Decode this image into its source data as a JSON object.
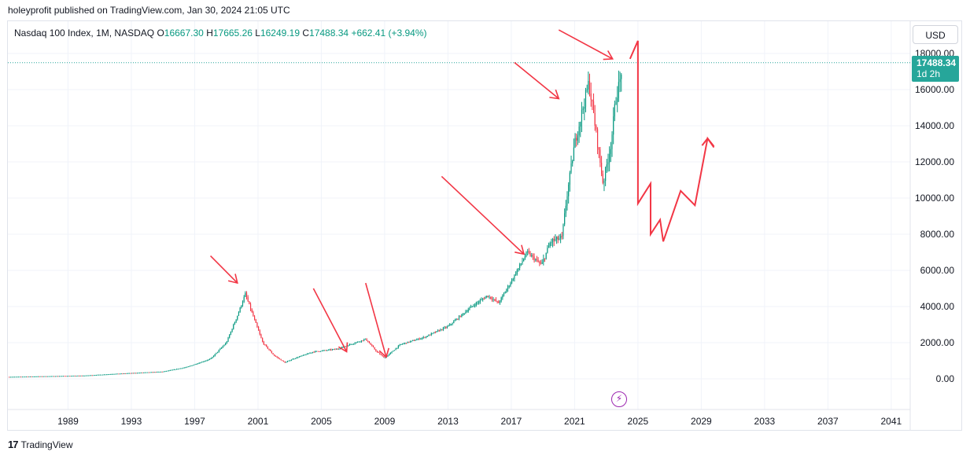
{
  "publisher_line": "holeyprofit published on TradingView.com, Jan 30, 2024 21:05 UTC",
  "legend": {
    "symbol": "Nasdaq 100 Index, 1M, NASDAQ",
    "o_label": "O",
    "o_value": "16667.30",
    "h_label": "H",
    "h_value": "17665.26",
    "l_label": "L",
    "l_value": "16249.19",
    "c_label": "C",
    "c_value": "17488.34",
    "change": "+662.41 (+3.94%)"
  },
  "currency": "USD",
  "price_tag": {
    "price": "17488.34",
    "countdown": "1d 2h"
  },
  "branding": {
    "logo_mark": "17",
    "name": "TradingView"
  },
  "colors": {
    "up": "#089981",
    "down": "#f23645",
    "annotation": "#f23645",
    "grid": "#f0f3fa",
    "last_price_line": "#26a69a"
  },
  "chart_data": {
    "type": "candlestick",
    "title": "Nasdaq 100 Index, 1M, NASDAQ",
    "interval": "1M",
    "y_axis": {
      "ticks": [
        0,
        2000,
        4000,
        6000,
        8000,
        10000,
        12000,
        14000,
        16000,
        18000
      ],
      "tick_labels": [
        "0.00",
        "2000.00",
        "4000.00",
        "6000.00",
        "8000.00",
        "10000.00",
        "12000.00",
        "14000.00",
        "16000.00",
        "18000.00"
      ],
      "side": "right"
    },
    "x_axis": {
      "ticks": [
        1989,
        1993,
        1997,
        2001,
        2005,
        2009,
        2013,
        2017,
        2021,
        2025,
        2029,
        2033,
        2037,
        2041
      ],
      "range": [
        1985.2,
        2042.2
      ]
    },
    "y_range": [
      -1700,
      19400
    ],
    "last_price": 17488.34,
    "price_path": [
      [
        1985.2,
        110
      ],
      [
        1990.0,
        180
      ],
      [
        1992.0,
        280
      ],
      [
        1995.0,
        400
      ],
      [
        1996.5,
        650
      ],
      [
        1998.0,
        1100
      ],
      [
        1999.0,
        2000
      ],
      [
        1999.7,
        3500
      ],
      [
        2000.2,
        4700
      ],
      [
        2000.6,
        3700
      ],
      [
        2001.3,
        2000
      ],
      [
        2002.0,
        1300
      ],
      [
        2002.7,
        900
      ],
      [
        2003.2,
        1100
      ],
      [
        2004.5,
        1500
      ],
      [
        2006.0,
        1650
      ],
      [
        2007.8,
        2200
      ],
      [
        2008.5,
        1500
      ],
      [
        2009.0,
        1150
      ],
      [
        2010.0,
        1900
      ],
      [
        2011.5,
        2300
      ],
      [
        2013.0,
        2900
      ],
      [
        2014.5,
        4000
      ],
      [
        2015.5,
        4600
      ],
      [
        2016.2,
        4200
      ],
      [
        2017.0,
        5400
      ],
      [
        2018.0,
        7000
      ],
      [
        2018.9,
        6300
      ],
      [
        2019.5,
        7600
      ],
      [
        2020.2,
        7800
      ],
      [
        2020.5,
        10000
      ],
      [
        2021.0,
        13000
      ],
      [
        2021.9,
        16400
      ],
      [
        2022.3,
        14000
      ],
      [
        2022.8,
        10800
      ],
      [
        2023.3,
        13000
      ],
      [
        2023.6,
        15500
      ],
      [
        2023.9,
        16600
      ],
      [
        2024.0,
        17488
      ]
    ],
    "annotation_arrows": [
      {
        "from": [
          1998.0,
          6800
        ],
        "to": [
          1999.7,
          5300
        ]
      },
      {
        "from": [
          2004.5,
          5000
        ],
        "to": [
          2006.6,
          1500
        ]
      },
      {
        "from": [
          2007.8,
          5300
        ],
        "to": [
          2009.1,
          1200
        ]
      },
      {
        "from": [
          2012.6,
          11200
        ],
        "to": [
          2017.8,
          6900
        ]
      },
      {
        "from": [
          2017.2,
          17500
        ],
        "to": [
          2020.0,
          15500
        ]
      },
      {
        "from": [
          2020.0,
          19300
        ],
        "to": [
          2023.4,
          17700
        ]
      }
    ],
    "projection_path": [
      [
        2024.5,
        17700
      ],
      [
        2025.0,
        18700
      ],
      [
        2025.0,
        9700
      ],
      [
        2025.8,
        10800
      ],
      [
        2025.8,
        8000
      ],
      [
        2026.4,
        8800
      ],
      [
        2026.6,
        7600
      ],
      [
        2027.7,
        10400
      ],
      [
        2028.6,
        9600
      ],
      [
        2029.4,
        13300
      ],
      [
        2029.8,
        12800
      ]
    ]
  }
}
